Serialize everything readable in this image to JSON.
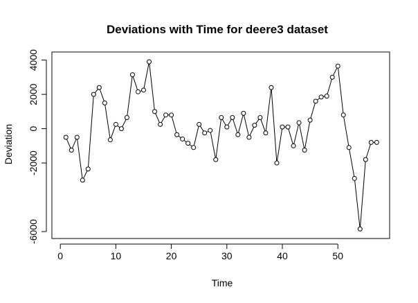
{
  "chart_data": {
    "type": "line",
    "title": "Deviations with Time for deere3 dataset",
    "xlabel": "Time",
    "ylabel": "Deviation",
    "xlim": [
      0,
      58
    ],
    "ylim": [
      -6400,
      4100
    ],
    "x_ticks": [
      0,
      10,
      20,
      30,
      40,
      50
    ],
    "y_ticks": [
      -6000,
      -2000,
      0,
      2000,
      4000
    ],
    "x_tick_labels": [
      "0",
      "10",
      "20",
      "30",
      "40",
      "50"
    ],
    "y_tick_labels": [
      "-6000",
      "-2000",
      "0",
      "2000",
      "4000"
    ],
    "markers": "open-circle",
    "grid": false,
    "line_color": "#000000",
    "series": [
      {
        "x": [
          1,
          2,
          3,
          4,
          5,
          6,
          7,
          8,
          9,
          10,
          11,
          12,
          13,
          14,
          15,
          16,
          17,
          18,
          19,
          20,
          21,
          22,
          23,
          24,
          25,
          26,
          27,
          28,
          29,
          30,
          31,
          32,
          33,
          34,
          35,
          36,
          37,
          38,
          39,
          40,
          41,
          42,
          43,
          44,
          45,
          46,
          47,
          48,
          49,
          50,
          51,
          52,
          53,
          54,
          55,
          56,
          57
        ],
        "values": [
          -500,
          -1250,
          -500,
          -3000,
          -2350,
          2000,
          2400,
          1500,
          -650,
          250,
          0,
          650,
          3150,
          2150,
          2250,
          3900,
          1000,
          250,
          800,
          800,
          -350,
          -600,
          -850,
          -1100,
          250,
          -250,
          -100,
          -1800,
          650,
          100,
          650,
          -350,
          900,
          -500,
          200,
          650,
          -250,
          2400,
          -2000,
          100,
          100,
          -1000,
          350,
          -1250,
          500,
          1600,
          1850,
          1900,
          3000,
          3650,
          800,
          -1100,
          -2900,
          -5850,
          -1800,
          -800,
          -800
        ]
      }
    ]
  }
}
